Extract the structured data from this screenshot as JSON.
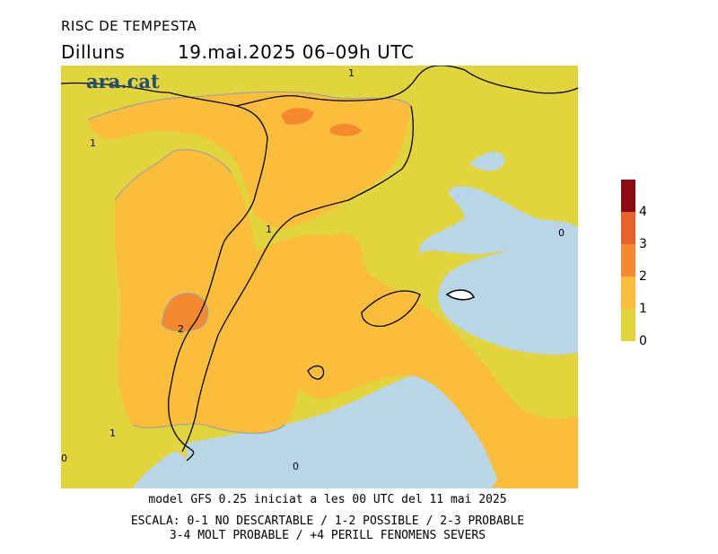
{
  "header": {
    "title": "RISC DE TEMPESTA",
    "day": "Dilluns",
    "date_time": "19.mai.2025 06–09h UTC"
  },
  "logo": {
    "text": "ara.cat"
  },
  "map": {
    "contour_labels": [
      "1",
      "1",
      "1",
      "2",
      "1",
      "0",
      "0",
      "0"
    ]
  },
  "legend": {
    "levels": [
      {
        "label": "4",
        "color": "#8b0d14"
      },
      {
        "label": "3",
        "color": "#e8632a"
      },
      {
        "label": "2",
        "color": "#f5892e"
      },
      {
        "label": "1",
        "color": "#fbbe3c"
      },
      {
        "label": "0",
        "color": "#e2d43c"
      }
    ],
    "labels": [
      "4",
      "3",
      "2",
      "1",
      "0"
    ]
  },
  "footer": {
    "line1": "model GFS 0.25 iniciat a les 00 UTC del 11 mai 2025",
    "line2": "ESCALA: 0-1 NO DESCARTABLE / 1-2 POSSIBLE / 2-3 PROBABLE",
    "line3": "3-4 MOLT PROBABLE / +4 PERILL FENOMENS SEVERS"
  },
  "colors": {
    "level0": "#e2d43c",
    "level1": "#fbbe3c",
    "level2": "#f5892e",
    "sea_low": "#b8d6e8",
    "border": "#000000",
    "contour": "#a0a0a0"
  }
}
